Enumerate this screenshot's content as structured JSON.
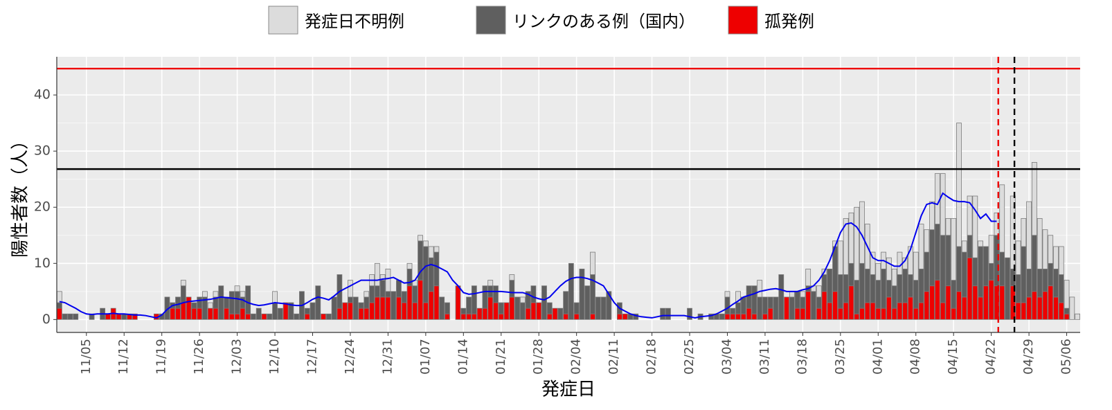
{
  "chart_data": {
    "type": "bar",
    "stacked": true,
    "x_label": "発症日",
    "y_label": "陽性者数（人）",
    "ylim": [
      -2.3,
      46.8
    ],
    "yticks": [
      0,
      10,
      20,
      30,
      40
    ],
    "grid": true,
    "legend": "top",
    "categories": [
      null,
      null,
      null,
      null,
      null,
      "11/05",
      null,
      null,
      null,
      null,
      null,
      null,
      "11/12",
      null,
      null,
      null,
      null,
      null,
      null,
      "11/19",
      null,
      null,
      null,
      null,
      null,
      null,
      "11/26",
      null,
      null,
      null,
      null,
      null,
      null,
      "12/03",
      null,
      null,
      null,
      null,
      null,
      null,
      "12/10",
      null,
      null,
      null,
      null,
      null,
      null,
      "12/17",
      null,
      null,
      null,
      null,
      null,
      null,
      "12/24",
      null,
      null,
      null,
      null,
      null,
      null,
      "12/31",
      null,
      null,
      null,
      null,
      null,
      null,
      "01/07",
      null,
      null,
      null,
      null,
      null,
      null,
      "01/14",
      null,
      null,
      null,
      null,
      null,
      null,
      "01/21",
      null,
      null,
      null,
      null,
      null,
      null,
      "01/28",
      null,
      null,
      null,
      null,
      null,
      null,
      "02/04",
      null,
      null,
      null,
      null,
      null,
      null,
      "02/11",
      null,
      null,
      null,
      null,
      null,
      null,
      "02/18",
      null,
      null,
      null,
      null,
      null,
      null,
      "02/25",
      null,
      null,
      null,
      null,
      null,
      null,
      "03/04",
      null,
      null,
      null,
      null,
      null,
      null,
      "03/11",
      null,
      null,
      null,
      null,
      null,
      null,
      "03/18",
      null,
      null,
      null,
      null,
      null,
      null,
      "03/25",
      null,
      null,
      null,
      null,
      null,
      null,
      "04/01",
      null,
      null,
      null,
      null,
      null,
      null,
      "04/08",
      null,
      null,
      null,
      null,
      null,
      null,
      "04/15",
      null,
      null,
      null,
      null,
      null,
      null,
      "04/22",
      null,
      null,
      null,
      null,
      null,
      null,
      "04/29",
      null,
      null,
      null,
      null,
      null,
      null,
      "05/06",
      null,
      null
    ],
    "series": [
      {
        "name": "孤発例",
        "color": "#ee0000",
        "values": [
          2,
          0,
          0,
          0,
          0,
          0,
          0,
          0,
          0,
          1,
          2,
          1,
          0,
          1,
          1,
          0,
          0,
          0,
          1,
          0,
          0,
          2,
          2,
          3,
          4,
          2,
          2,
          0,
          2,
          2,
          0,
          2,
          1,
          1,
          2,
          1,
          0,
          0,
          1,
          0,
          0,
          0,
          3,
          0,
          0,
          0,
          1,
          0,
          0,
          1,
          0,
          0,
          2,
          3,
          3,
          0,
          2,
          2,
          3,
          4,
          4,
          4,
          0,
          4,
          3,
          6,
          3,
          7,
          3,
          5,
          6,
          0,
          1,
          0,
          6,
          1,
          1,
          1,
          2,
          2,
          4,
          3,
          1,
          3,
          4,
          0,
          0,
          2,
          3,
          3,
          0,
          1,
          2,
          0,
          1,
          0,
          1,
          0,
          0,
          1,
          0,
          0,
          0,
          0,
          1,
          1,
          0,
          0,
          0,
          0,
          0,
          0,
          0,
          0,
          0,
          0,
          0,
          0,
          0,
          0,
          0,
          0,
          0,
          0,
          1,
          1,
          1,
          1,
          2,
          1,
          0,
          1,
          2,
          0,
          0,
          4,
          0,
          2,
          2,
          5,
          0,
          2,
          5,
          3,
          5,
          2,
          3,
          6,
          1,
          2,
          3,
          3,
          2,
          2,
          4,
          2,
          3,
          3,
          4,
          2,
          3,
          5,
          6,
          7,
          3,
          6,
          2,
          5,
          4,
          11,
          6,
          4,
          6,
          7,
          6,
          6,
          0,
          6,
          3,
          3,
          4,
          5,
          4,
          5,
          6,
          4,
          3,
          1,
          0,
          0
        ]
      },
      {
        "name": "リンクのある例（国内）",
        "color": "#5f5f5f",
        "values": [
          1,
          1,
          1,
          1,
          0,
          0,
          1,
          0,
          2,
          0,
          0,
          0,
          1,
          0,
          0,
          0,
          0,
          0,
          0,
          1,
          4,
          1,
          2,
          3,
          0,
          1,
          2,
          4,
          0,
          2,
          6,
          2,
          4,
          4,
          2,
          5,
          1,
          2,
          0,
          1,
          3,
          2,
          0,
          3,
          1,
          5,
          1,
          3,
          6,
          0,
          1,
          4,
          6,
          0,
          1,
          4,
          1,
          2,
          3,
          2,
          3,
          1,
          5,
          3,
          2,
          3,
          3,
          7,
          10,
          6,
          6,
          4,
          2,
          0,
          0,
          1,
          3,
          5,
          0,
          4,
          2,
          3,
          2,
          0,
          3,
          4,
          3,
          3,
          3,
          0,
          6,
          2,
          0,
          2,
          4,
          10,
          2,
          9,
          6,
          7,
          4,
          4,
          5,
          0,
          2,
          0,
          1,
          1,
          0,
          0,
          0,
          0,
          2,
          2,
          0,
          0,
          0,
          2,
          0,
          1,
          0,
          1,
          1,
          1,
          3,
          1,
          2,
          3,
          4,
          5,
          4,
          3,
          2,
          4,
          8,
          0,
          4,
          3,
          2,
          1,
          5,
          2,
          3,
          6,
          8,
          6,
          5,
          4,
          6,
          8,
          6,
          5,
          5,
          7,
          3,
          4,
          5,
          6,
          4,
          5,
          6,
          7,
          10,
          10,
          12,
          9,
          5,
          8,
          8,
          4,
          5,
          9,
          7,
          3,
          9,
          6,
          11,
          3,
          5,
          10,
          5,
          10,
          5,
          4,
          4,
          5,
          5,
          1,
          0,
          0
        ]
      },
      {
        "name": "発症日不明例",
        "color": "#dcdcdc",
        "values": [
          2,
          0,
          0,
          0,
          0,
          0,
          0,
          0,
          0,
          0,
          0,
          0,
          0,
          0,
          0,
          0,
          0,
          0,
          0,
          0,
          0,
          0,
          0,
          1,
          0,
          0,
          0,
          1,
          1,
          1,
          0,
          0,
          0,
          1,
          1,
          0,
          0,
          0,
          0,
          0,
          2,
          0,
          0,
          0,
          0,
          0,
          0,
          0,
          0,
          0,
          0,
          0,
          0,
          0,
          3,
          0,
          0,
          1,
          2,
          4,
          1,
          4,
          0,
          0,
          0,
          1,
          1,
          1,
          1,
          2,
          1,
          0,
          0,
          0,
          0,
          0,
          0,
          0,
          0,
          0,
          1,
          0,
          0,
          0,
          1,
          0,
          1,
          0,
          0,
          0,
          0,
          0,
          0,
          0,
          0,
          0,
          0,
          0,
          0,
          4,
          0,
          0,
          0,
          0,
          0,
          0,
          0,
          0,
          0,
          0,
          0,
          0,
          0,
          0,
          0,
          0,
          0,
          0,
          0,
          0,
          0,
          0,
          0,
          0,
          1,
          0,
          2,
          0,
          0,
          0,
          3,
          0,
          0,
          0,
          0,
          0,
          1,
          0,
          1,
          3,
          1,
          2,
          1,
          0,
          1,
          6,
          10,
          9,
          13,
          11,
          8,
          4,
          3,
          3,
          4,
          3,
          4,
          2,
          5,
          5,
          8,
          4,
          5,
          9,
          11,
          3,
          11,
          22,
          2,
          7,
          11,
          1,
          0,
          5,
          4,
          12,
          0,
          13,
          6,
          5,
          12,
          13,
          9,
          7,
          5,
          4,
          5,
          5,
          4,
          1
        ]
      }
    ],
    "legend_order": [
      2,
      1,
      0
    ],
    "line": {
      "color": "#0000ee",
      "values": [
        3.2,
        3.0,
        2.5,
        2.0,
        1.4,
        1.0,
        0.9,
        1.0,
        1.0,
        1.0,
        1.1,
        1.0,
        1.0,
        0.9,
        0.8,
        0.8,
        0.7,
        0.5,
        0.3,
        0.8,
        1.8,
        2.5,
        2.7,
        3.0,
        3.2,
        3.3,
        3.4,
        3.5,
        3.6,
        3.8,
        4.0,
        3.9,
        3.8,
        3.7,
        3.5,
        3.0,
        2.7,
        2.5,
        2.6,
        2.8,
        3.0,
        2.9,
        2.8,
        2.6,
        2.5,
        2.5,
        3.0,
        3.6,
        4.0,
        3.8,
        3.5,
        4.2,
        5.0,
        5.5,
        6.0,
        6.5,
        7.0,
        7.0,
        7.0,
        7.0,
        7.2,
        7.3,
        7.5,
        7.0,
        6.5,
        6.6,
        7.0,
        8.5,
        9.5,
        9.8,
        9.5,
        9.0,
        8.5,
        7.0,
        6.0,
        4.8,
        4.5,
        4.6,
        4.8,
        5.0,
        5.0,
        5.0,
        5.0,
        4.9,
        4.8,
        4.8,
        4.8,
        4.5,
        4.0,
        3.7,
        3.5,
        4.0,
        5.0,
        6.0,
        6.8,
        7.3,
        7.5,
        7.5,
        7.3,
        7.0,
        6.5,
        6.0,
        4.5,
        3.0,
        2.0,
        1.5,
        1.0,
        0.7,
        0.5,
        0.4,
        0.3,
        0.5,
        0.7,
        0.7,
        0.7,
        0.7,
        0.7,
        0.5,
        0.3,
        0.5,
        0.6,
        0.7,
        1.0,
        1.5,
        2.0,
        2.7,
        3.3,
        4.0,
        4.3,
        4.6,
        5.0,
        5.2,
        5.4,
        5.5,
        5.3,
        5.0,
        5.0,
        5.0,
        5.3,
        5.5,
        6.0,
        7.0,
        8.5,
        10.5,
        13.0,
        15.5,
        17.0,
        17.2,
        16.5,
        15.0,
        13.0,
        11.0,
        10.5,
        10.5,
        10.0,
        9.5,
        9.5,
        10.5,
        12.5,
        15.5,
        18.5,
        20.5,
        20.8,
        20.5,
        22.5,
        21.8,
        21.2,
        21.0,
        21.0,
        20.8,
        19.5,
        18.0,
        18.8,
        17.5,
        17.5,
        null,
        null,
        null,
        null,
        null,
        null,
        null,
        null,
        null,
        null,
        null,
        null,
        null,
        null,
        null
      ]
    },
    "hlines": [
      {
        "y": 44.7,
        "color": "#ee0000"
      },
      {
        "y": 26.8,
        "color": "#000000"
      }
    ],
    "vlines": [
      {
        "x": 174.3,
        "color": "#ee0000"
      },
      {
        "x": 177.3,
        "color": "#000000"
      }
    ]
  }
}
